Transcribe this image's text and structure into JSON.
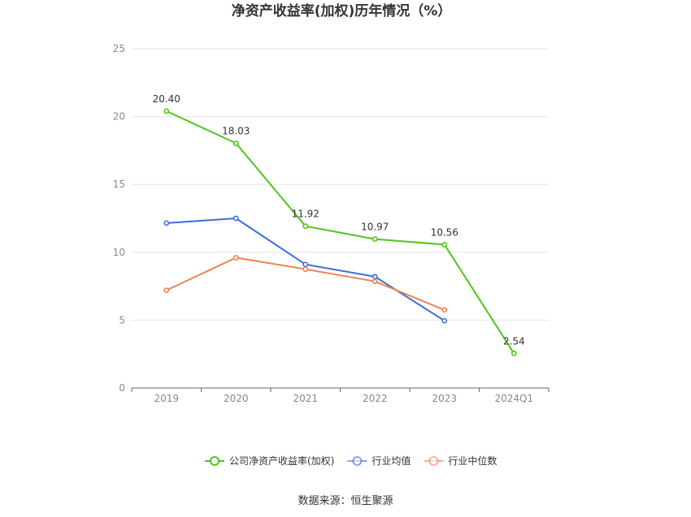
{
  "chart_data": {
    "type": "line",
    "title": "净资产收益率(加权)历年情况（%）",
    "categories": [
      "2019",
      "2020",
      "2021",
      "2022",
      "2023",
      "2024Q1"
    ],
    "ylim": [
      0,
      25
    ],
    "yticks": [
      0,
      5,
      10,
      15,
      20,
      25
    ],
    "grid": true,
    "legend_position": "bottom",
    "series": [
      {
        "name": "公司净资产收益率(加权)",
        "color": "#52c41a",
        "values": [
          20.4,
          18.03,
          11.92,
          10.97,
          10.56,
          2.54
        ],
        "labels": [
          "20.40",
          "18.03",
          "11.92",
          "10.97",
          "10.56",
          "2.54"
        ]
      },
      {
        "name": "行业均值",
        "color": "#3a6fd8",
        "values": [
          12.15,
          12.5,
          9.1,
          8.2,
          4.95,
          null
        ]
      },
      {
        "name": "行业中位数",
        "color": "#f0804f",
        "values": [
          7.2,
          9.6,
          8.75,
          7.85,
          5.75,
          null
        ]
      }
    ]
  },
  "source_text": "数据来源：恒生聚源"
}
